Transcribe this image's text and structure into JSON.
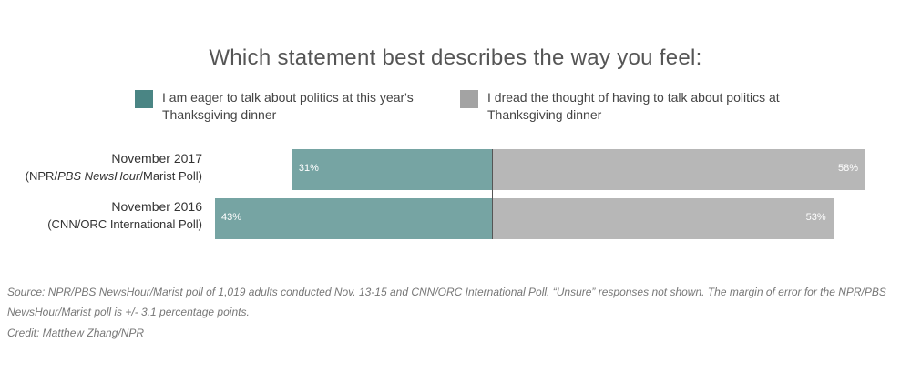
{
  "title": "Which statement best describes the way you feel:",
  "legend": [
    {
      "text": "I am eager to talk about politics at this year's Thanksgiving dinner",
      "color": "#4a8584"
    },
    {
      "text": "I dread the thought of having to talk about politics at Thanksgiving dinner",
      "color": "#a3a3a3"
    }
  ],
  "chart_data": {
    "type": "bar",
    "orientation": "horizontal-diverging",
    "title": "Which statement best describes the way you feel:",
    "categories": [
      {
        "label": "November 2017",
        "sublabel_prefix": "(NPR/",
        "sublabel_em": "PBS NewsHour",
        "sublabel_suffix": "/Marist Poll)"
      },
      {
        "label": "November 2016",
        "sublabel_prefix": "(CNN/ORC International Poll)",
        "sublabel_em": "",
        "sublabel_suffix": ""
      }
    ],
    "series": [
      {
        "name": "I am eager to talk about politics at this year's Thanksgiving dinner",
        "values": [
          31,
          43
        ],
        "labels": [
          "31%",
          "43%"
        ],
        "color": "#76a4a3"
      },
      {
        "name": "I dread the thought of having to talk about politics at Thanksgiving dinner",
        "values": [
          58,
          53
        ],
        "labels": [
          "58%",
          "53%"
        ],
        "color": "#b7b7b7"
      }
    ],
    "unit": "%"
  },
  "footer": {
    "source": "Source: NPR/PBS NewsHour/Marist poll of 1,019 adults conducted Nov. 13-15 and CNN/ORC International Poll. “Unsure” responses not shown. The margin of error for the NPR/PBS NewsHour/Marist poll is +/- 3.1 percentage points.",
    "credit": "Credit: Matthew Zhang/NPR"
  }
}
